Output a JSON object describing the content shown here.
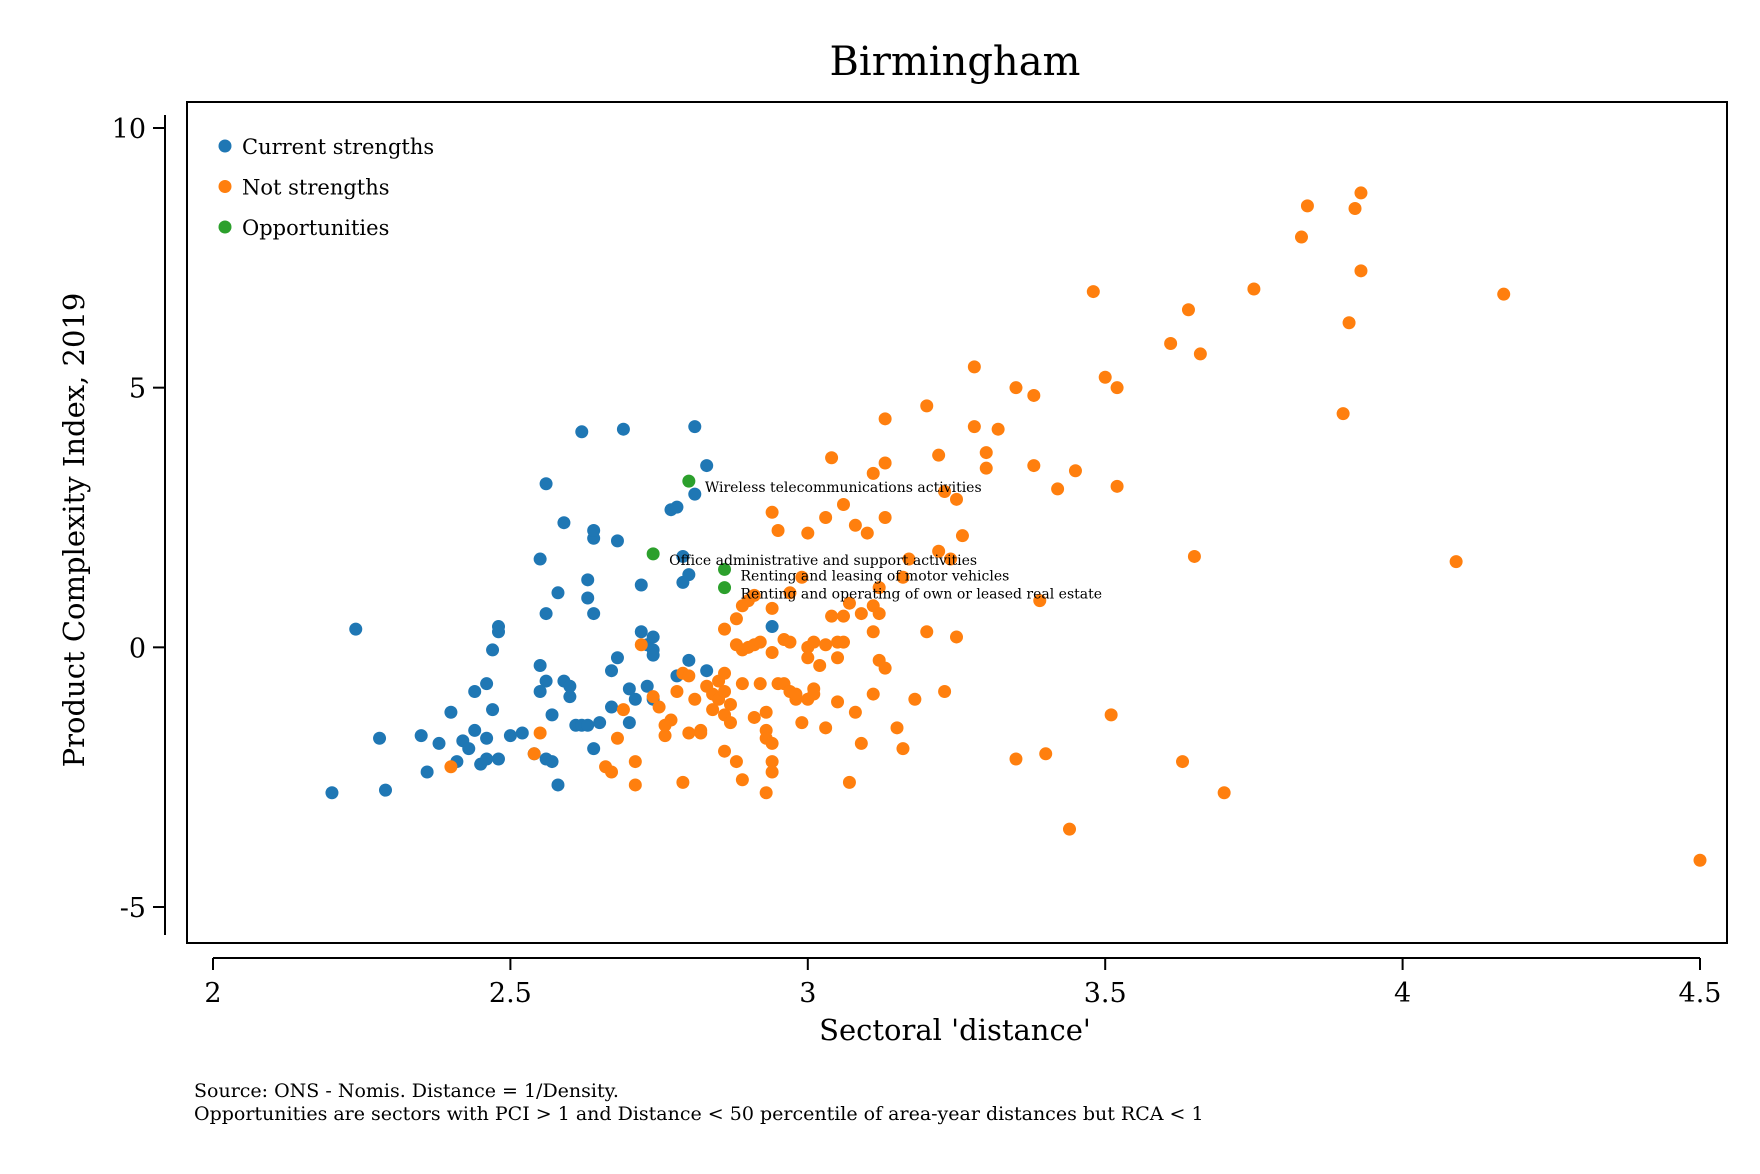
{
  "chart_data": {
    "type": "scatter",
    "title": "Birmingham",
    "xlabel": "Sectoral 'distance'",
    "ylabel": "Product Complexity Index, 2019",
    "xlim": [
      1.96,
      4.54
    ],
    "ylim": [
      -5.5,
      10.5
    ],
    "xticks": [
      2,
      2.5,
      3,
      3.5,
      4,
      4.5
    ],
    "xtick_labels": [
      "2",
      "2.5",
      "3",
      "3.5",
      "4",
      "4.5"
    ],
    "yticks": [
      -5,
      0,
      5,
      10
    ],
    "ytick_labels": [
      "-5",
      "0",
      "5",
      "10"
    ],
    "grid": false,
    "legend_position": "top-left",
    "series": [
      {
        "name": "Current strengths",
        "color": "#1f77b4",
        "points": [
          [
            2.2,
            -2.8
          ],
          [
            2.24,
            0.35
          ],
          [
            2.28,
            -1.75
          ],
          [
            2.29,
            -2.75
          ],
          [
            2.35,
            -1.7
          ],
          [
            2.36,
            -2.4
          ],
          [
            2.38,
            -1.85
          ],
          [
            2.4,
            -1.25
          ],
          [
            2.41,
            -2.2
          ],
          [
            2.42,
            -1.8
          ],
          [
            2.43,
            -1.95
          ],
          [
            2.44,
            -1.6
          ],
          [
            2.44,
            -0.85
          ],
          [
            2.45,
            -2.25
          ],
          [
            2.46,
            -1.75
          ],
          [
            2.46,
            -2.15
          ],
          [
            2.46,
            -0.7
          ],
          [
            2.47,
            -0.05
          ],
          [
            2.47,
            -1.2
          ],
          [
            2.48,
            0.4
          ],
          [
            2.48,
            0.3
          ],
          [
            2.48,
            -2.15
          ],
          [
            2.5,
            -1.7
          ],
          [
            2.52,
            -1.65
          ],
          [
            2.54,
            -2.05
          ],
          [
            2.55,
            -0.35
          ],
          [
            2.55,
            -0.85
          ],
          [
            2.56,
            -0.65
          ],
          [
            2.55,
            1.7
          ],
          [
            2.56,
            0.65
          ],
          [
            2.56,
            3.15
          ],
          [
            2.56,
            -2.15
          ],
          [
            2.57,
            -2.2
          ],
          [
            2.57,
            -1.3
          ],
          [
            2.58,
            1.05
          ],
          [
            2.58,
            -2.65
          ],
          [
            2.59,
            -0.65
          ],
          [
            2.59,
            2.4
          ],
          [
            2.6,
            -0.75
          ],
          [
            2.6,
            -0.95
          ],
          [
            2.61,
            -1.5
          ],
          [
            2.62,
            -1.5
          ],
          [
            2.62,
            4.15
          ],
          [
            2.63,
            1.3
          ],
          [
            2.63,
            0.95
          ],
          [
            2.63,
            -1.5
          ],
          [
            2.64,
            2.1
          ],
          [
            2.64,
            2.25
          ],
          [
            2.64,
            0.65
          ],
          [
            2.64,
            -1.95
          ],
          [
            2.65,
            -1.45
          ],
          [
            2.67,
            -0.45
          ],
          [
            2.67,
            -1.15
          ],
          [
            2.68,
            2.05
          ],
          [
            2.68,
            -0.2
          ],
          [
            2.69,
            4.2
          ],
          [
            2.7,
            -1.45
          ],
          [
            2.7,
            -0.8
          ],
          [
            2.71,
            -1.0
          ],
          [
            2.72,
            1.2
          ],
          [
            2.72,
            0.3
          ],
          [
            2.73,
            0.05
          ],
          [
            2.73,
            -0.75
          ],
          [
            2.74,
            0.2
          ],
          [
            2.74,
            -0.05
          ],
          [
            2.74,
            -1.0
          ],
          [
            2.74,
            -0.15
          ],
          [
            2.77,
            2.65
          ],
          [
            2.78,
            2.7
          ],
          [
            2.78,
            -0.55
          ],
          [
            2.79,
            1.25
          ],
          [
            2.79,
            1.75
          ],
          [
            2.8,
            1.4
          ],
          [
            2.8,
            -0.25
          ],
          [
            2.81,
            2.95
          ],
          [
            2.81,
            4.25
          ],
          [
            2.83,
            -0.45
          ],
          [
            2.83,
            3.5
          ],
          [
            2.94,
            0.4
          ]
        ]
      },
      {
        "name": "Not strengths",
        "color": "#ff7f0e",
        "points": [
          [
            2.4,
            -2.3
          ],
          [
            2.54,
            -2.05
          ],
          [
            2.55,
            -1.65
          ],
          [
            2.66,
            -2.3
          ],
          [
            2.67,
            -2.4
          ],
          [
            2.68,
            -1.75
          ],
          [
            2.69,
            -1.2
          ],
          [
            2.71,
            -2.65
          ],
          [
            2.71,
            -2.2
          ],
          [
            2.72,
            0.05
          ],
          [
            2.74,
            -0.95
          ],
          [
            2.75,
            -1.15
          ],
          [
            2.76,
            -1.5
          ],
          [
            2.76,
            -1.7
          ],
          [
            2.77,
            -1.4
          ],
          [
            2.78,
            -0.85
          ],
          [
            2.79,
            -0.5
          ],
          [
            2.79,
            -2.6
          ],
          [
            2.8,
            -1.65
          ],
          [
            2.8,
            -0.55
          ],
          [
            2.81,
            -1.0
          ],
          [
            2.82,
            -1.65
          ],
          [
            2.82,
            -1.6
          ],
          [
            2.83,
            -0.75
          ],
          [
            2.84,
            -1.2
          ],
          [
            2.84,
            -0.9
          ],
          [
            2.85,
            -0.65
          ],
          [
            2.85,
            -1.0
          ],
          [
            2.86,
            -1.3
          ],
          [
            2.86,
            -0.85
          ],
          [
            2.86,
            -2.0
          ],
          [
            2.86,
            0.35
          ],
          [
            2.86,
            -0.5
          ],
          [
            2.87,
            -1.1
          ],
          [
            2.87,
            -1.45
          ],
          [
            2.88,
            0.05
          ],
          [
            2.88,
            0.55
          ],
          [
            2.88,
            -2.2
          ],
          [
            2.89,
            -0.05
          ],
          [
            2.89,
            -2.55
          ],
          [
            2.89,
            0.8
          ],
          [
            2.89,
            -0.7
          ],
          [
            2.9,
            0.0
          ],
          [
            2.9,
            0.9
          ],
          [
            2.91,
            1.0
          ],
          [
            2.91,
            -1.35
          ],
          [
            2.91,
            0.05
          ],
          [
            2.92,
            0.1
          ],
          [
            2.92,
            -0.7
          ],
          [
            2.93,
            -2.8
          ],
          [
            2.93,
            -1.25
          ],
          [
            2.93,
            -1.6
          ],
          [
            2.93,
            -1.75
          ],
          [
            2.94,
            2.6
          ],
          [
            2.94,
            -2.2
          ],
          [
            2.94,
            -2.4
          ],
          [
            2.94,
            -1.85
          ],
          [
            2.94,
            0.75
          ],
          [
            2.94,
            -0.1
          ],
          [
            2.95,
            2.25
          ],
          [
            2.95,
            -0.7
          ],
          [
            2.96,
            0.15
          ],
          [
            2.96,
            -0.7
          ],
          [
            2.97,
            1.05
          ],
          [
            2.97,
            0.1
          ],
          [
            2.97,
            -0.85
          ],
          [
            2.98,
            -1.0
          ],
          [
            2.98,
            -0.9
          ],
          [
            2.99,
            1.35
          ],
          [
            2.99,
            -1.45
          ],
          [
            3.0,
            2.2
          ],
          [
            3.0,
            0.0
          ],
          [
            3.0,
            -0.2
          ],
          [
            3.0,
            -1.0
          ],
          [
            3.01,
            -0.8
          ],
          [
            3.01,
            -0.9
          ],
          [
            3.01,
            0.1
          ],
          [
            3.02,
            -0.35
          ],
          [
            3.03,
            2.5
          ],
          [
            3.03,
            0.05
          ],
          [
            3.03,
            -1.55
          ],
          [
            3.04,
            3.65
          ],
          [
            3.04,
            0.6
          ],
          [
            3.05,
            0.1
          ],
          [
            3.05,
            -0.2
          ],
          [
            3.05,
            -1.05
          ],
          [
            3.06,
            0.1
          ],
          [
            3.06,
            2.75
          ],
          [
            3.06,
            0.6
          ],
          [
            3.07,
            -2.6
          ],
          [
            3.07,
            0.85
          ],
          [
            3.08,
            2.35
          ],
          [
            3.08,
            -1.25
          ],
          [
            3.09,
            0.65
          ],
          [
            3.09,
            -1.85
          ],
          [
            3.1,
            2.2
          ],
          [
            3.11,
            3.35
          ],
          [
            3.11,
            0.3
          ],
          [
            3.11,
            0.8
          ],
          [
            3.11,
            -0.9
          ],
          [
            3.12,
            -0.25
          ],
          [
            3.12,
            0.65
          ],
          [
            3.12,
            1.15
          ],
          [
            3.13,
            4.4
          ],
          [
            3.13,
            2.5
          ],
          [
            3.13,
            3.55
          ],
          [
            3.13,
            -0.4
          ],
          [
            3.15,
            -1.55
          ],
          [
            3.16,
            1.35
          ],
          [
            3.16,
            -1.95
          ],
          [
            3.17,
            1.7
          ],
          [
            3.18,
            -1.0
          ],
          [
            3.2,
            4.65
          ],
          [
            3.2,
            0.3
          ],
          [
            3.22,
            3.7
          ],
          [
            3.22,
            1.85
          ],
          [
            3.23,
            3.0
          ],
          [
            3.23,
            -0.85
          ],
          [
            3.24,
            1.7
          ],
          [
            3.25,
            2.85
          ],
          [
            3.25,
            0.2
          ],
          [
            3.26,
            2.15
          ],
          [
            3.28,
            5.4
          ],
          [
            3.28,
            4.25
          ],
          [
            3.3,
            3.75
          ],
          [
            3.3,
            3.45
          ],
          [
            3.32,
            4.2
          ],
          [
            3.35,
            5.0
          ],
          [
            3.35,
            -2.15
          ],
          [
            3.38,
            4.85
          ],
          [
            3.38,
            3.5
          ],
          [
            3.39,
            0.9
          ],
          [
            3.4,
            -2.05
          ],
          [
            3.42,
            3.05
          ],
          [
            3.44,
            -3.5
          ],
          [
            3.45,
            3.4
          ],
          [
            3.48,
            6.85
          ],
          [
            3.5,
            5.2
          ],
          [
            3.51,
            -1.3
          ],
          [
            3.52,
            5.0
          ],
          [
            3.52,
            3.1
          ],
          [
            3.61,
            5.85
          ],
          [
            3.63,
            -2.2
          ],
          [
            3.64,
            6.5
          ],
          [
            3.65,
            1.75
          ],
          [
            3.66,
            5.65
          ],
          [
            3.7,
            -2.8
          ],
          [
            3.75,
            6.9
          ],
          [
            3.83,
            7.9
          ],
          [
            3.84,
            8.5
          ],
          [
            3.9,
            4.5
          ],
          [
            3.91,
            6.25
          ],
          [
            3.92,
            8.45
          ],
          [
            3.93,
            7.25
          ],
          [
            3.93,
            8.75
          ],
          [
            4.09,
            1.65
          ],
          [
            4.17,
            6.8
          ],
          [
            4.5,
            -4.1
          ]
        ]
      },
      {
        "name": "Opportunities",
        "color": "#2ca02c",
        "points": [
          [
            2.8,
            3.2,
            "Wireless telecommunications activities"
          ],
          [
            2.74,
            1.8,
            "Office administrative and support activities"
          ],
          [
            2.86,
            1.5,
            "Renting and leasing of motor vehicles"
          ],
          [
            2.86,
            1.15,
            "Renting and operating of own or leased real estate"
          ]
        ]
      }
    ],
    "notes": [
      "Source: ONS - Nomis. Distance = 1/Density.",
      "Opportunities are sectors with PCI > 1 and Distance < 50 percentile of area-year distances but RCA < 1"
    ]
  }
}
